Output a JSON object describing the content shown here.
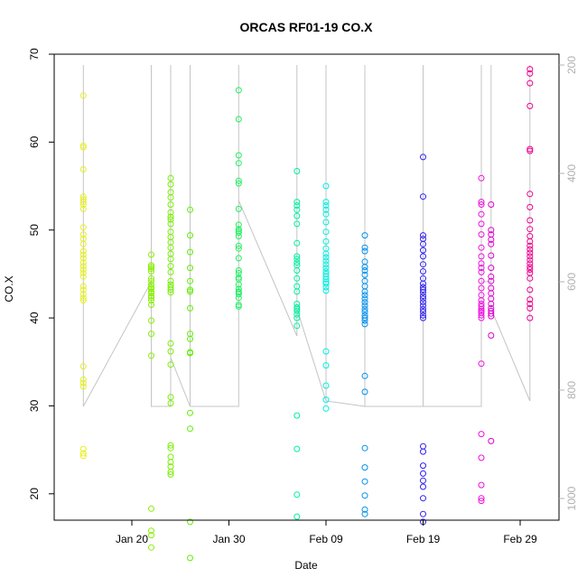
{
  "chart_data": {
    "type": "scatter",
    "title": "ORCAS RF01-19 CO.X",
    "xlabel": "Date",
    "ylabel": "CO.X",
    "x_ticks": [
      "Jan 20",
      "Jan 30",
      "Feb 09",
      "Feb 19",
      "Feb 29"
    ],
    "y_ticks": [
      20,
      30,
      40,
      50,
      60,
      70
    ],
    "y2_ticks": [
      200,
      400,
      600,
      800,
      1000
    ],
    "y2_reversed": true,
    "colors": [
      "#ffff00",
      "#80ff00",
      "#00ff80",
      "#00ffff",
      "#0080ff",
      "#4000ff",
      "#ff00ff",
      "#ff0080"
    ],
    "series": [
      {
        "date": "2016-01-15",
        "color": "#e6f020",
        "values": [
          65.3,
          59.6,
          59.4,
          56.9,
          53.8,
          53.5,
          53.2,
          52.9,
          52.4,
          50.3,
          49.5,
          49.0,
          48.4,
          47.6,
          47.2,
          46.8,
          46.3,
          45.9,
          45.5,
          45.1,
          44.7,
          43.6,
          43.2,
          42.7,
          42.3,
          42.0,
          34.5,
          33.0,
          32.6,
          32.2,
          25.1,
          24.6,
          24.3
        ]
      },
      {
        "date": "2016-01-22",
        "color": "#88f000",
        "values": [
          47.2,
          46.0,
          45.8,
          45.6,
          45.3,
          44.5,
          44.2,
          43.8,
          43.5,
          43.3,
          43.0,
          42.8,
          42.5,
          42.3,
          42.0,
          41.5,
          39.7,
          38.2,
          35.7,
          18.3,
          15.8,
          15.3,
          13.9
        ]
      },
      {
        "date": "2016-01-24",
        "color": "#78f000",
        "values": [
          55.9,
          55.2,
          54.3,
          53.7,
          52.9,
          52.0,
          51.5,
          51.2,
          50.7,
          49.8,
          49.2,
          48.6,
          48.0,
          47.3,
          46.7,
          45.9,
          45.2,
          44.2,
          43.8,
          43.5,
          43.2,
          42.9,
          37.1,
          36.2,
          34.7,
          31.0,
          30.3,
          25.5,
          25.2,
          24.2,
          23.6,
          23.1,
          22.5,
          22.2
        ]
      },
      {
        "date": "2016-01-26",
        "color": "#60f000",
        "values": [
          52.3,
          49.4,
          47.5,
          45.7,
          44.2,
          43.2,
          43.0,
          41.1,
          38.2,
          37.6,
          36.1,
          36.0,
          29.2,
          27.4,
          16.8,
          12.7
        ]
      },
      {
        "date": "2016-01-31",
        "color": "#20f060",
        "values": [
          65.9,
          62.6,
          58.5,
          57.6,
          55.6,
          55.3,
          52.4,
          50.6,
          50.1,
          49.9,
          49.7,
          49.3,
          48.2,
          47.9,
          46.8,
          45.4,
          45.1,
          44.6,
          44.4,
          43.8,
          43.3,
          43.0,
          42.9,
          42.7,
          42.3,
          41.5,
          41.3
        ]
      },
      {
        "date": "2016-02-06",
        "color": "#00f0a0",
        "values": [
          56.7,
          53.2,
          52.8,
          52.3,
          51.6,
          50.7,
          48.5,
          47.0,
          46.7,
          46.3,
          46.0,
          45.4,
          44.5,
          43.6,
          43.0,
          41.6,
          41.2,
          41.0,
          40.8,
          40.4,
          40.0,
          39.1,
          28.9,
          25.1,
          19.9,
          17.4
        ]
      },
      {
        "date": "2016-02-09",
        "color": "#00f0e0",
        "values": [
          55.0,
          53.2,
          52.8,
          52.3,
          51.8,
          50.9,
          49.8,
          48.7,
          47.9,
          47.3,
          46.9,
          46.5,
          46.1,
          45.7,
          45.3,
          45.0,
          44.7,
          44.4,
          44.1,
          43.9,
          43.5,
          43.1,
          36.2,
          34.6,
          32.3,
          30.7,
          29.7
        ]
      },
      {
        "date": "2016-02-13",
        "color": "#0090f0",
        "values": [
          49.4,
          48.0,
          47.6,
          46.4,
          45.8,
          45.4,
          44.9,
          44.2,
          43.6,
          43.0,
          42.6,
          42.2,
          41.8,
          41.4,
          41.0,
          40.7,
          40.3,
          40.0,
          39.7,
          39.3,
          33.4,
          31.6,
          25.2,
          23.0,
          21.4,
          19.8,
          18.2,
          17.7
        ]
      },
      {
        "date": "2016-02-19",
        "color": "#3020f0",
        "values": [
          58.3,
          53.8,
          49.4,
          49.0,
          48.4,
          47.7,
          47.0,
          46.1,
          45.3,
          44.5,
          43.9,
          43.5,
          43.2,
          42.9,
          42.5,
          42.2,
          41.8,
          41.4,
          41.0,
          40.7,
          40.3,
          40.0,
          25.4,
          24.8,
          23.2,
          22.3,
          21.5,
          20.8,
          19.5,
          17.7,
          16.8
        ]
      },
      {
        "date": "2016-02-25",
        "color": "#f010e0",
        "values": [
          55.9,
          53.2,
          52.9,
          51.8,
          50.7,
          49.5,
          48.0,
          47.0,
          46.2,
          45.7,
          45.2,
          44.2,
          43.4,
          42.6,
          42.0,
          41.6,
          41.3,
          41.0,
          40.8,
          40.6,
          40.3,
          40.0,
          34.8,
          26.8,
          24.1,
          21.0,
          19.5,
          19.2
        ]
      },
      {
        "date": "2016-02-26",
        "color": "#e000d0",
        "values": [
          52.9,
          50.0,
          49.5,
          48.9,
          48.4,
          47.1,
          45.7,
          44.7,
          44.2,
          43.4,
          42.8,
          42.2,
          41.6,
          41.1,
          40.8,
          40.5,
          40.2,
          38.0,
          26.0
        ]
      },
      {
        "date": "2016-03-01",
        "color": "#f00090",
        "values": [
          68.3,
          67.8,
          66.7,
          64.1,
          59.2,
          59.0,
          54.1,
          52.6,
          51.1,
          50.1,
          49.3,
          48.7,
          48.2,
          47.8,
          47.4,
          47.0,
          46.6,
          46.2,
          45.8,
          45.5,
          45.1,
          44.5,
          43.2,
          42.1,
          41.6,
          41.1,
          40.0
        ]
      }
    ],
    "altitude_path": [
      [
        "2016-01-15",
        200
      ],
      [
        "2016-01-15",
        830
      ],
      [
        "2016-01-22",
        600
      ],
      [
        "2016-01-22",
        200
      ],
      [
        "2016-01-22",
        830
      ],
      [
        "2016-01-24",
        830
      ],
      [
        "2016-01-24",
        200
      ],
      [
        "2016-01-24",
        740
      ],
      [
        "2016-01-26",
        830
      ],
      [
        "2016-01-26",
        200
      ],
      [
        "2016-01-26",
        830
      ],
      [
        "2016-01-31",
        830
      ],
      [
        "2016-01-31",
        200
      ],
      [
        "2016-01-31",
        450
      ],
      [
        "2016-02-06",
        700
      ],
      [
        "2016-02-06",
        200
      ],
      [
        "2016-02-06",
        650
      ],
      [
        "2016-02-09",
        820
      ],
      [
        "2016-02-09",
        200
      ],
      [
        "2016-02-09",
        820
      ],
      [
        "2016-02-13",
        830
      ],
      [
        "2016-02-13",
        200
      ],
      [
        "2016-02-13",
        830
      ],
      [
        "2016-02-19",
        830
      ],
      [
        "2016-02-19",
        200
      ],
      [
        "2016-02-19",
        830
      ],
      [
        "2016-02-25",
        830
      ],
      [
        "2016-02-25",
        200
      ],
      [
        "2016-02-25",
        600
      ],
      [
        "2016-02-26",
        600
      ],
      [
        "2016-02-26",
        200
      ],
      [
        "2016-02-26",
        650
      ],
      [
        "2016-03-01",
        820
      ],
      [
        "2016-03-01",
        200
      ]
    ],
    "xlim": [
      "2016-01-12",
      "2016-03-04"
    ],
    "ylim": [
      17,
      70
    ],
    "y2lim": [
      180,
      1040
    ],
    "grid": false,
    "legend": "none"
  }
}
